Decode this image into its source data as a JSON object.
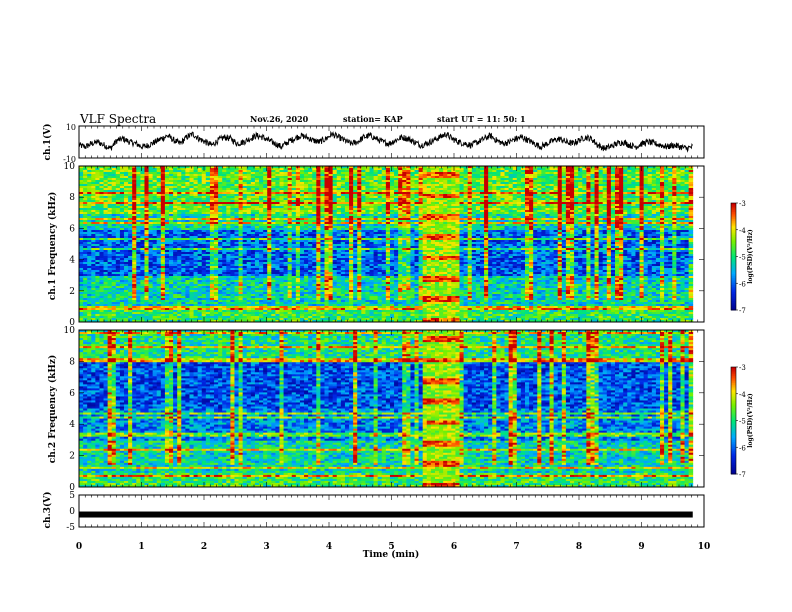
{
  "header": {
    "title": "VLF Spectra",
    "date": "Nov.26, 2020",
    "station": "station= KAP",
    "start": "start  UT =   11: 50: 1"
  },
  "chart_data": [
    {
      "type": "line",
      "ylabel": "ch.1(V)",
      "ylim": [
        -10,
        10
      ],
      "yticks": [
        "10",
        "-10"
      ],
      "xlim": [
        0,
        10
      ],
      "series": [
        {
          "values": [
            -2,
            -3,
            -1,
            0,
            -2,
            -4,
            1,
            2,
            0,
            -1,
            -3,
            -2,
            0,
            2,
            4,
            1,
            -1,
            3,
            5,
            2,
            0,
            -2,
            1,
            3,
            2,
            -1,
            0,
            2,
            4,
            3,
            1,
            -1,
            -3,
            0,
            2,
            4,
            3,
            1,
            0,
            2,
            5,
            3,
            1,
            -1,
            0,
            3,
            4,
            2,
            0,
            -1,
            1,
            3,
            2,
            0,
            -2,
            -1,
            1,
            3,
            5,
            2,
            0,
            -1,
            -2,
            0,
            2,
            4,
            1,
            -1,
            0,
            2,
            3,
            1,
            -1,
            -3,
            -1,
            1,
            2,
            0,
            -1,
            1,
            3,
            2,
            -2,
            -4,
            -3,
            -1,
            0,
            -2,
            -3,
            -1,
            0,
            -1,
            -2,
            -3,
            -2,
            -3,
            -4,
            -3
          ]
        }
      ]
    },
    {
      "type": "heatmap",
      "ylabel": "ch.1 Frequency (kHz)",
      "ylim": [
        0,
        10
      ],
      "yticks": [
        "0",
        "2",
        "4",
        "6",
        "8",
        "10"
      ],
      "xlim": [
        0,
        10
      ],
      "gap_min": [
        5.45,
        6.05
      ],
      "colorbar": {
        "label": "log(PSD)(V²/Hz)",
        "range": [
          -7,
          -3
        ],
        "ticks": [
          "-3",
          "-4",
          "-5",
          "-6",
          "-7"
        ]
      }
    },
    {
      "type": "heatmap",
      "ylabel": "ch.2 Frequency (kHz)",
      "ylim": [
        0,
        10
      ],
      "yticks": [
        "0",
        "2",
        "4",
        "6",
        "8",
        "10"
      ],
      "xlim": [
        0,
        10
      ],
      "gap_min": [
        5.45,
        6.05
      ],
      "colorbar": {
        "label": "log(PSD)(V²/Hz)",
        "range": [
          -7,
          -3
        ],
        "ticks": [
          "-3",
          "-4",
          "-5",
          "-6",
          "-7"
        ]
      }
    },
    {
      "type": "line",
      "ylabel": "ch.3(V)",
      "ylim": [
        -5,
        5
      ],
      "yticks": [
        "5",
        "0",
        "-5"
      ],
      "xlim": [
        0,
        10
      ],
      "xlabel": "Time (min)",
      "xticks": [
        "0",
        "1",
        "2",
        "3",
        "4",
        "5",
        "6",
        "7",
        "8",
        "9",
        "10"
      ],
      "series": [
        {
          "values": [
            -1.1,
            -1.1,
            -1.1,
            -1.1,
            -1.1
          ]
        }
      ]
    }
  ]
}
